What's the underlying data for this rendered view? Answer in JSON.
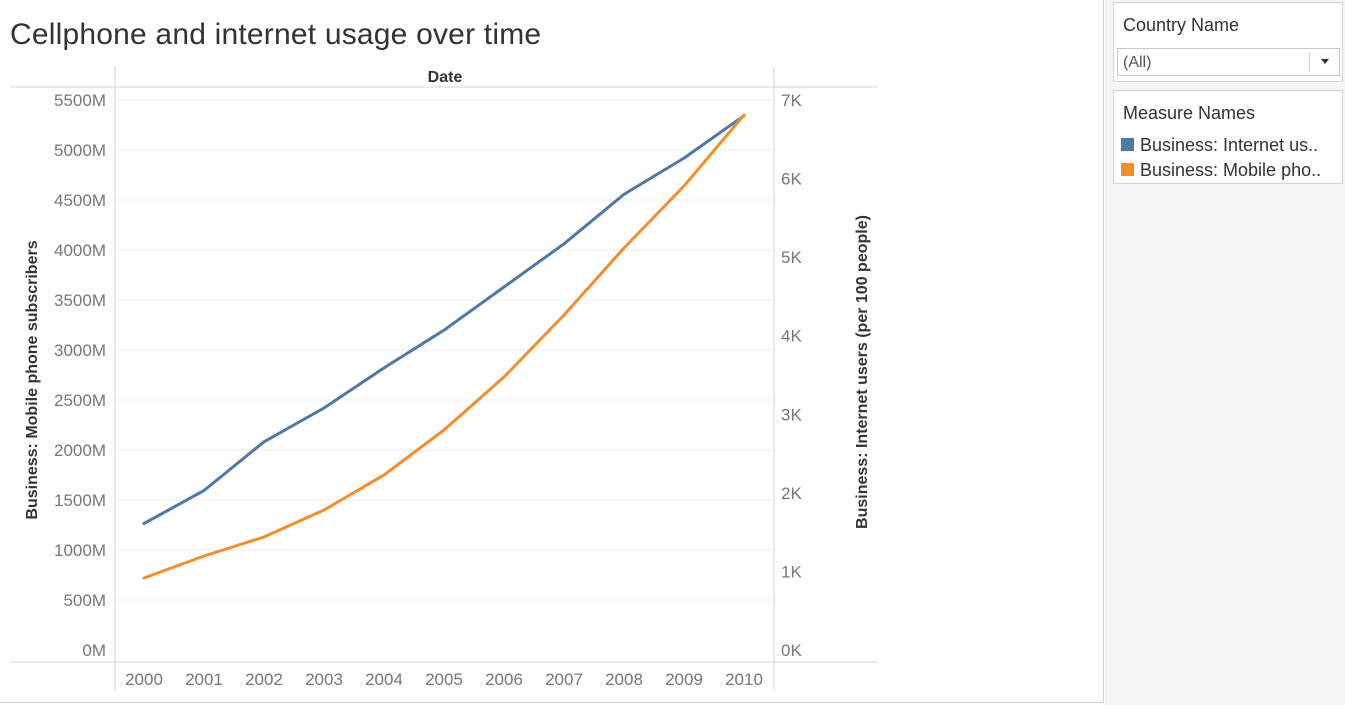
{
  "title": "Cellphone and internet usage over time",
  "filter": {
    "title": "Country Name",
    "selected": "(All)"
  },
  "legend": {
    "title": "Measure Names",
    "items": [
      {
        "label": "Business: Internet us..",
        "color": "#4e79a7"
      },
      {
        "label": "Business: Mobile pho..",
        "color": "#f28e2b"
      }
    ]
  },
  "chart_data": {
    "type": "line",
    "header": "Date",
    "categories": [
      "2000",
      "2001",
      "2002",
      "2003",
      "2004",
      "2005",
      "2006",
      "2007",
      "2008",
      "2009",
      "2010"
    ],
    "y_left": {
      "label": "Business: Mobile phone subscribers",
      "ticks": [
        "0M",
        "500M",
        "1000M",
        "1500M",
        "2000M",
        "2500M",
        "3000M",
        "3500M",
        "4000M",
        "4500M",
        "5000M",
        "5500M"
      ],
      "tick_values": [
        0,
        500,
        1000,
        1500,
        2000,
        2500,
        3000,
        3500,
        4000,
        4500,
        5000,
        5500
      ],
      "range": [
        0,
        5500
      ]
    },
    "y_right": {
      "label": "Business: Internet users (per 100 people)",
      "ticks": [
        "0K",
        "1K",
        "2K",
        "3K",
        "4K",
        "5K",
        "6K",
        "7K"
      ],
      "tick_values": [
        0,
        1000,
        2000,
        3000,
        4000,
        5000,
        6000,
        7000
      ],
      "range": [
        0,
        7000
      ]
    },
    "series": [
      {
        "name": "Business: Internet us..",
        "axis": "right",
        "color": "#4e79a7",
        "values": [
          1610,
          2030,
          2650,
          3080,
          3590,
          4070,
          4620,
          5170,
          5800,
          6260,
          6800
        ]
      },
      {
        "name": "Business: Mobile pho..",
        "axis": "left",
        "color": "#f28e2b",
        "values": [
          720,
          940,
          1130,
          1400,
          1750,
          2200,
          2730,
          3350,
          4020,
          4640,
          5350
        ]
      }
    ]
  }
}
